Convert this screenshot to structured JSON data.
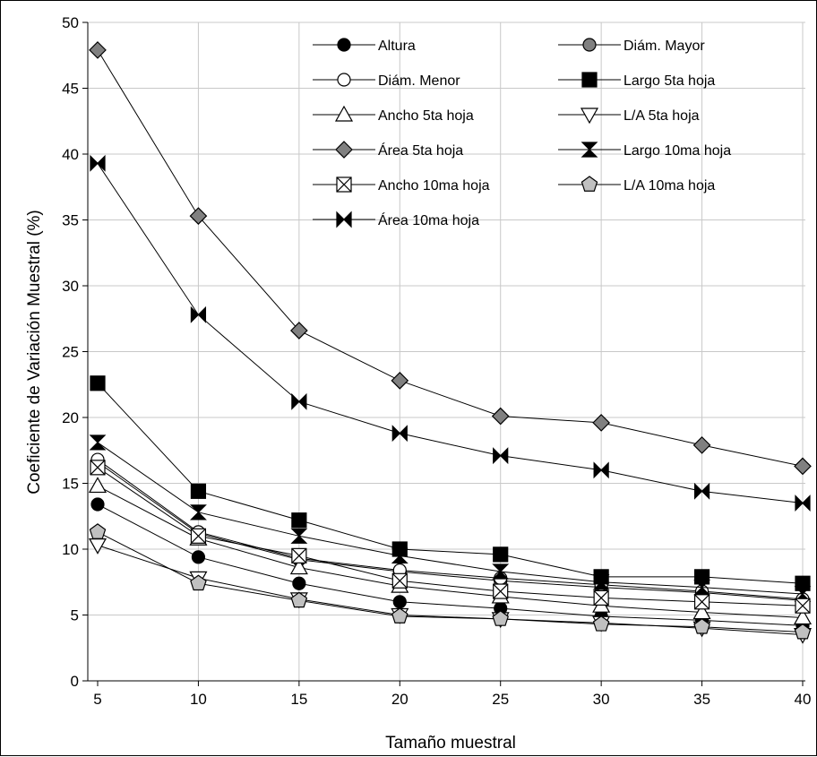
{
  "chart_data": {
    "type": "line",
    "xlabel": "Tamaño muestral",
    "ylabel": "Coeficiente de Variación Muestral (%)",
    "xlim": [
      5,
      40
    ],
    "ylim": [
      0,
      50
    ],
    "x": [
      5,
      10,
      15,
      20,
      25,
      30,
      35,
      40
    ],
    "x_ticks": [
      5,
      10,
      15,
      20,
      25,
      30,
      35,
      40
    ],
    "y_ticks": [
      0,
      5,
      10,
      15,
      20,
      25,
      30,
      35,
      40,
      45,
      50
    ],
    "grid": true,
    "legend_position": "top-right",
    "series": [
      {
        "name": "Altura",
        "marker": "filled-circle",
        "values": [
          13.4,
          9.4,
          7.4,
          6.0,
          5.5,
          4.9,
          4.6,
          4.2
        ]
      },
      {
        "name": "Diám. Mayor",
        "marker": "gray-circle",
        "values": [
          16.6,
          11.2,
          9.2,
          8.3,
          7.6,
          7.1,
          6.7,
          6.1
        ]
      },
      {
        "name": "Diám. Menor",
        "marker": "open-circle",
        "values": [
          16.8,
          11.3,
          9.3,
          8.4,
          7.8,
          7.3,
          6.8,
          6.2
        ]
      },
      {
        "name": "Largo 5ta hoja",
        "marker": "filled-square",
        "values": [
          22.6,
          14.4,
          12.2,
          10.0,
          9.6,
          7.9,
          7.9,
          7.4
        ]
      },
      {
        "name": "Ancho 5ta hoja",
        "marker": "open-triangle-up",
        "values": [
          14.8,
          10.8,
          8.6,
          7.2,
          6.4,
          5.7,
          5.2,
          4.8
        ]
      },
      {
        "name": "L/A 5ta hoja",
        "marker": "open-triangle-down",
        "values": [
          10.3,
          7.8,
          6.2,
          5.0,
          4.7,
          4.4,
          4.0,
          3.5
        ]
      },
      {
        "name": "Área 5ta hoja",
        "marker": "gray-diamond",
        "values": [
          47.9,
          35.3,
          26.6,
          22.8,
          20.1,
          19.6,
          17.9,
          16.3
        ]
      },
      {
        "name": "Largo 10ma hoja",
        "marker": "hourglass",
        "values": [
          18.1,
          12.8,
          11.0,
          9.5,
          8.3,
          7.5,
          7.1,
          6.6
        ]
      },
      {
        "name": "Ancho 10ma hoja",
        "marker": "boxed-x",
        "values": [
          16.2,
          11.0,
          9.5,
          7.6,
          6.8,
          6.3,
          6.0,
          5.7
        ]
      },
      {
        "name": "L/A 10ma hoja",
        "marker": "gray-pentagon",
        "values": [
          11.3,
          7.4,
          6.1,
          4.9,
          4.7,
          4.3,
          4.1,
          3.7
        ]
      },
      {
        "name": "Área 10ma hoja",
        "marker": "bowtie",
        "values": [
          39.3,
          27.8,
          21.2,
          18.8,
          17.1,
          16.0,
          14.4,
          13.5
        ]
      }
    ]
  }
}
